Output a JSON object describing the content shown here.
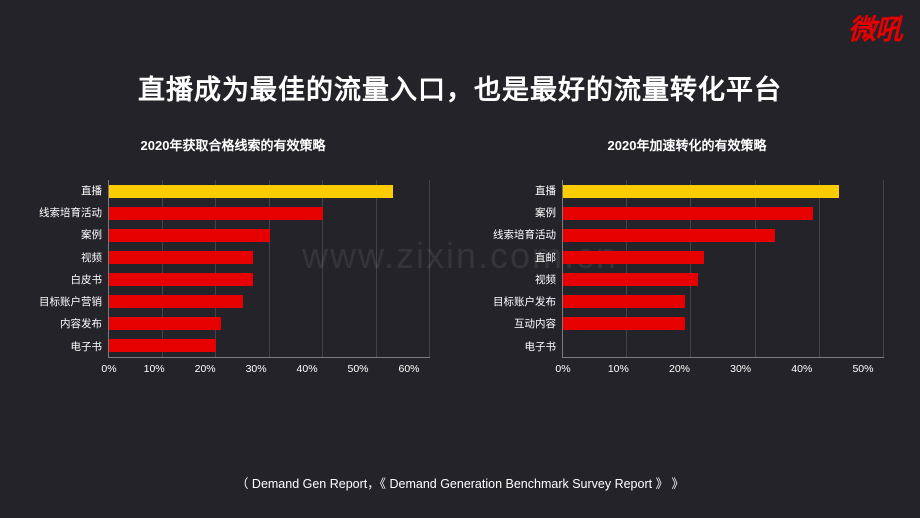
{
  "logo": "微吼",
  "page_title": "直播成为最佳的流量入口，也是最好的流量转化平台",
  "watermark": "www.zixin.com.cn",
  "background_color": "#232329",
  "text_color": "#ffffff",
  "highlight_color": "#ffcc00",
  "bar_color": "#e60000",
  "grid_color": "rgba(255,255,255,0.15)",
  "chart_left": {
    "title": "2020年获取合格线索的有效策略",
    "type": "bar-horizontal",
    "xlim_max": 60,
    "xtick_step": 10,
    "xticks": [
      "0%",
      "10%",
      "20%",
      "30%",
      "40%",
      "50%",
      "60%"
    ],
    "bars": [
      {
        "label": "直播",
        "value": 53,
        "color": "#ffcc00"
      },
      {
        "label": "线索培育活动",
        "value": 40,
        "color": "#e60000"
      },
      {
        "label": "案例",
        "value": 30,
        "color": "#e60000"
      },
      {
        "label": "视频",
        "value": 27,
        "color": "#e60000"
      },
      {
        "label": "白皮书",
        "value": 27,
        "color": "#e60000"
      },
      {
        "label": "目标账户营销",
        "value": 25,
        "color": "#e60000"
      },
      {
        "label": "内容发布",
        "value": 21,
        "color": "#e60000"
      },
      {
        "label": "电子书",
        "value": 20,
        "color": "#e60000"
      }
    ]
  },
  "chart_right": {
    "title": "2020年加速转化的有效策略",
    "type": "bar-horizontal",
    "xlim_max": 50,
    "xtick_step": 10,
    "xticks": [
      "0%",
      "10%",
      "20%",
      "30%",
      "40%",
      "50%"
    ],
    "bars": [
      {
        "label": "直播",
        "value": 43,
        "color": "#ffcc00"
      },
      {
        "label": "案例",
        "value": 39,
        "color": "#e60000"
      },
      {
        "label": "线索培育活动",
        "value": 33,
        "color": "#e60000"
      },
      {
        "label": "直邮",
        "value": 22,
        "color": "#e60000"
      },
      {
        "label": "视频",
        "value": 21,
        "color": "#e60000"
      },
      {
        "label": "目标账户发布",
        "value": 19,
        "color": "#e60000"
      },
      {
        "label": "互动内容",
        "value": 19,
        "color": "#e60000"
      },
      {
        "label": "电子书",
        "value": 0,
        "color": "#e60000"
      }
    ]
  },
  "source_text": "（ Demand Gen Report，《 Demand Generation Benchmark Survey Report 》 》"
}
